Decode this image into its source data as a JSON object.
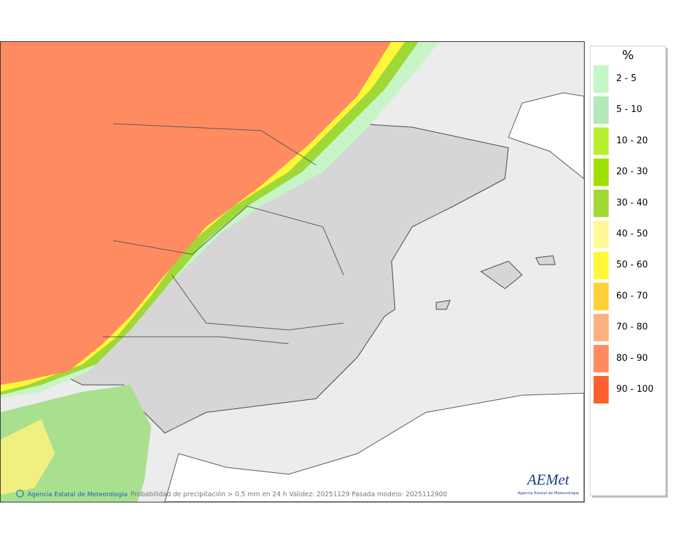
{
  "legend": {
    "title": "%",
    "items": [
      {
        "label": "2 - 5",
        "color": "#c4f7c8"
      },
      {
        "label": "5 - 10",
        "color": "#b4e8b8"
      },
      {
        "label": "10 - 20",
        "color": "#b8f030"
      },
      {
        "label": "20 - 30",
        "color": "#a0e000"
      },
      {
        "label": "30 - 40",
        "color": "#a0d838"
      },
      {
        "label": "40 - 50",
        "color": "#fff898"
      },
      {
        "label": "50 - 60",
        "color": "#fff838"
      },
      {
        "label": "60 - 70",
        "color": "#ffd038"
      },
      {
        "label": "70 - 80",
        "color": "#ffb080"
      },
      {
        "label": "80 - 90",
        "color": "#ff8c60"
      },
      {
        "label": "90 - 100",
        "color": "#ff6030"
      }
    ]
  },
  "credit": "Agencia Estatal de Meteorología",
  "caption": "Probabilidad de precipitación > 0.5 mm en 24 h Validez: 20251129 Pasada modelo: 2025112900",
  "logo": {
    "name": "AEMet",
    "subtitle": "Agencia Estatal de Meteorología"
  }
}
